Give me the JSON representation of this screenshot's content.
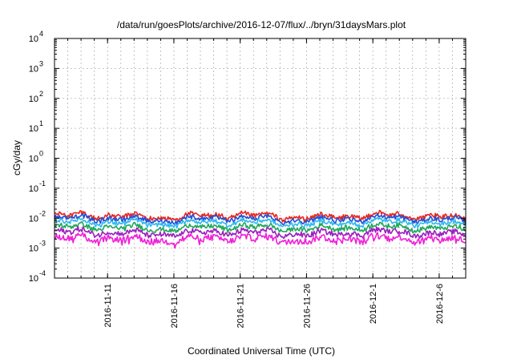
{
  "chart_data": {
    "type": "line",
    "title": "/data/run/goesPlots/archive/2016-12-07/flux/../bryn/31daysMars.plot",
    "xlabel": "Coordinated Universal Time (UTC)",
    "ylabel": "cGy/day",
    "yscale": "log",
    "ylim": [
      0.0001,
      10000
    ],
    "y_ticks": [
      {
        "base": "10",
        "exp": "-4",
        "value": 0.0001
      },
      {
        "base": "10",
        "exp": "-3",
        "value": 0.001
      },
      {
        "base": "10",
        "exp": "-2",
        "value": 0.01
      },
      {
        "base": "10",
        "exp": "-1",
        "value": 0.1
      },
      {
        "base": "10",
        "exp": "0",
        "value": 1
      },
      {
        "base": "10",
        "exp": "1",
        "value": 10
      },
      {
        "base": "10",
        "exp": "2",
        "value": 100
      },
      {
        "base": "10",
        "exp": "3",
        "value": 1000
      },
      {
        "base": "10",
        "exp": "4",
        "value": 10000
      }
    ],
    "xlim": [
      "2016-11-07",
      "2016-12-08"
    ],
    "x_ticks": [
      "2016-11-11",
      "2016-11-16",
      "2016-11-21",
      "2016-11-26",
      "2016-12-1",
      "2016-12-6"
    ],
    "x_tick_dates": [
      "2016-11-11",
      "2016-11-16",
      "2016-11-21",
      "2016-11-26",
      "2016-12-01",
      "2016-12-06"
    ],
    "grid": true,
    "legend": "none",
    "series": [
      {
        "color": "#e8261f",
        "level": 0.0115,
        "spread": 0.16
      },
      {
        "color": "#1f4fd8",
        "level": 0.0093,
        "spread": 0.14
      },
      {
        "color": "#2fb8f0",
        "level": 0.007,
        "spread": 0.14
      },
      {
        "color": "#1fa85a",
        "level": 0.0048,
        "spread": 0.15
      },
      {
        "color": "#9a1fbf",
        "level": 0.0032,
        "spread": 0.17
      },
      {
        "color": "#f01fd8",
        "level": 0.002,
        "spread": 0.22
      }
    ]
  }
}
